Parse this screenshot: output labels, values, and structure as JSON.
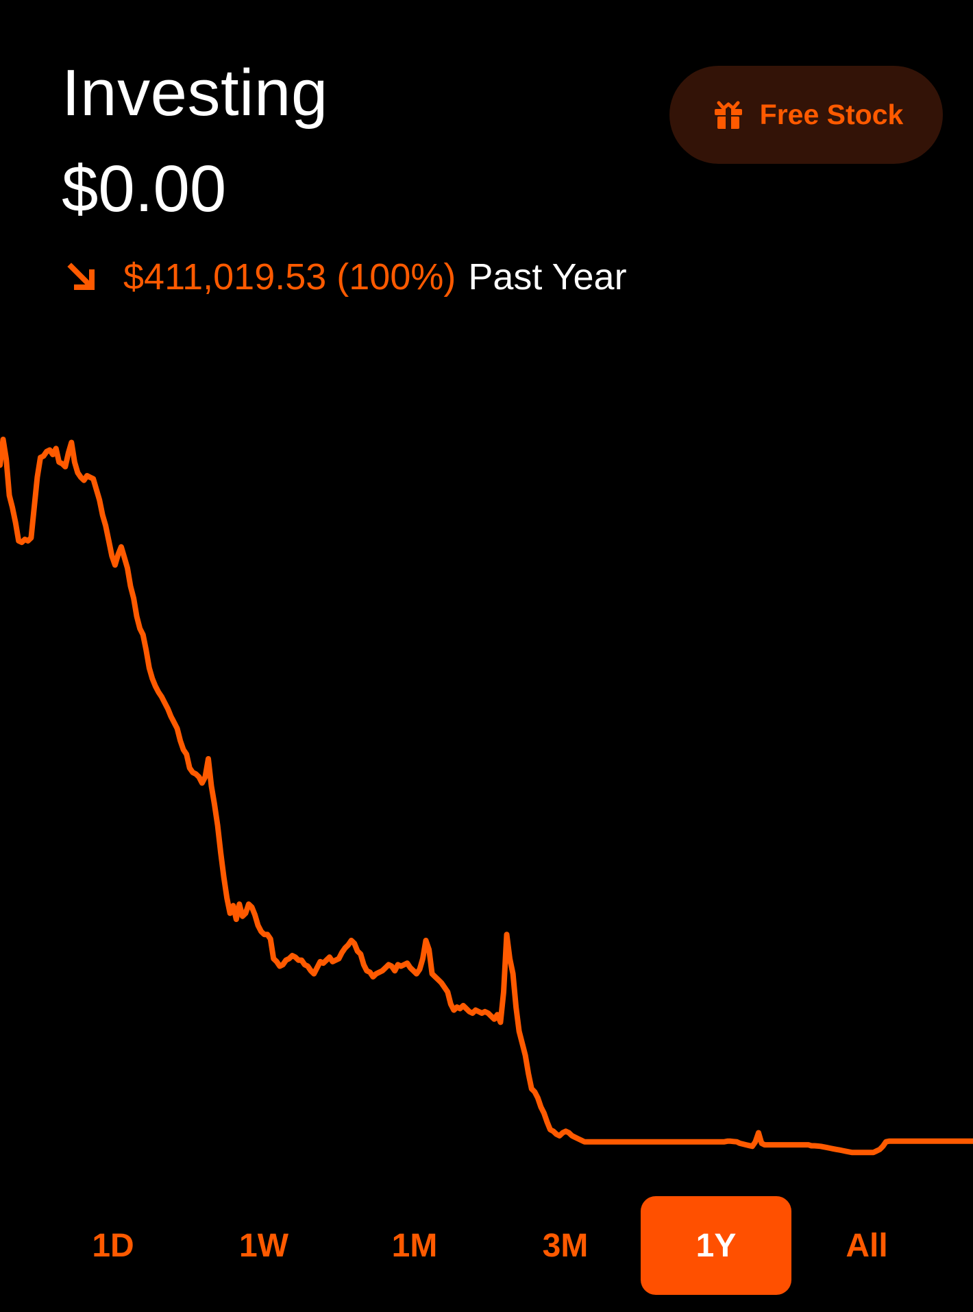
{
  "header": {
    "title": "Investing",
    "balance": "$0.00",
    "change_amount": "$411,019.53 (100%)",
    "change_period": "Past Year",
    "change_direction_icon": "arrow-down-right-icon"
  },
  "promo_button": {
    "label": "Free Stock",
    "icon": "gift-icon"
  },
  "colors": {
    "accent": "#ff5a00",
    "promo_background": "#331307",
    "active_range_background": "#ff5000",
    "background": "#000000",
    "text": "#ffffff"
  },
  "chart_data": {
    "type": "line",
    "period": "1Y",
    "values": [
      78,
      95,
      82,
      58,
      50,
      40,
      28,
      27,
      29,
      28,
      30,
      50,
      70,
      83,
      84,
      87,
      88,
      85,
      89,
      80,
      79,
      77,
      86,
      93,
      80,
      73,
      70,
      68,
      71,
      70,
      69,
      62,
      55,
      45,
      38,
      28,
      18,
      12,
      19,
      24,
      17,
      10,
      -2,
      -10,
      -22,
      -30,
      -34,
      -44,
      -56,
      -63,
      -68,
      -72,
      -75,
      -79,
      -83,
      -88,
      -92,
      -96,
      -104,
      -110,
      -113,
      -122,
      -125,
      -126,
      -128,
      -132,
      -128,
      -116,
      -134,
      -146,
      -160,
      -178,
      -194,
      -208,
      -218,
      -213,
      -222,
      -212,
      -220,
      -218,
      -212,
      -214,
      -219,
      -226,
      -230,
      -232,
      -232,
      -235,
      -248,
      -250,
      -253,
      -252,
      -249,
      -248,
      -246,
      -247,
      -249,
      -249,
      -252,
      -253,
      -256,
      -258,
      -254,
      -250,
      -251,
      -249,
      -247,
      -250,
      -249,
      -248,
      -244,
      -241,
      -239,
      -236,
      -238,
      -243,
      -245,
      -252,
      -256,
      -257,
      -260,
      -258,
      -257,
      -256,
      -254,
      -252,
      -253,
      -256,
      -252,
      -253,
      -252,
      -251,
      -254,
      -256,
      -258,
      -255,
      -248,
      -236,
      -242,
      -258,
      -260,
      -262,
      -264,
      -267,
      -270,
      -278,
      -282,
      -280,
      -281,
      -279,
      -281,
      -283,
      -284,
      -282,
      -283,
      -284,
      -283,
      -284,
      -286,
      -288,
      -285,
      -290,
      -270,
      -232,
      -248,
      -258,
      -280,
      -296,
      -304,
      -312,
      -324,
      -334,
      -336,
      -340,
      -346,
      -350,
      -356,
      -361,
      -362,
      -364,
      -365,
      -363,
      -362,
      -363,
      -365,
      -366,
      -367,
      -368,
      -369,
      -369,
      -369,
      -369,
      -369,
      -369,
      -369,
      -369,
      -369,
      -369,
      -369,
      -369,
      -369,
      -369,
      -369,
      -369,
      -369,
      -369,
      -369,
      -369,
      -369,
      -369,
      -369,
      -369,
      -369,
      -369,
      -369,
      -369,
      -369,
      -369,
      -369,
      -369,
      -369,
      -369,
      -369,
      -369,
      -369,
      -369,
      -369,
      -369,
      -369,
      -369,
      -369,
      -369,
      -369,
      -369,
      -368.6,
      -368.6,
      -368.8,
      -369,
      -370,
      -370.5,
      -371,
      -371.5,
      -372,
      -369,
      -363,
      -370,
      -371,
      -371,
      -371,
      -371,
      -371,
      -371,
      -371,
      -371,
      -371,
      -371,
      -371,
      -371,
      -371,
      -371,
      -371,
      -371.6,
      -371.6,
      -371.8,
      -372,
      -372.4,
      -372.8,
      -373.2,
      -373.6,
      -374,
      -374.4,
      -374.8,
      -375.2,
      -375.6,
      -376,
      -376,
      -376,
      -376,
      -376,
      -376,
      -376,
      -376,
      -375,
      -374,
      -372,
      -369,
      -368.6,
      -368.6,
      -368.6,
      -368.6,
      -368.6,
      -368.6,
      -368.6,
      -368.6,
      -368.6,
      -368.6,
      -368.6,
      -368.6,
      -368.6,
      -368.6,
      -368.6,
      -368.6,
      -368.6,
      -368.6,
      -368.6,
      -368.6,
      -368.6,
      -368.6,
      -368.6,
      -368.6,
      -368.6,
      -368.6,
      -368.6,
      -368.6
    ],
    "ylim": [
      -380,
      100
    ],
    "color": "#ff5a00",
    "axes_visible": false,
    "grid": false
  },
  "ranges": {
    "selected": "1Y",
    "items": [
      "1D",
      "1W",
      "1M",
      "3M",
      "1Y",
      "All"
    ]
  }
}
